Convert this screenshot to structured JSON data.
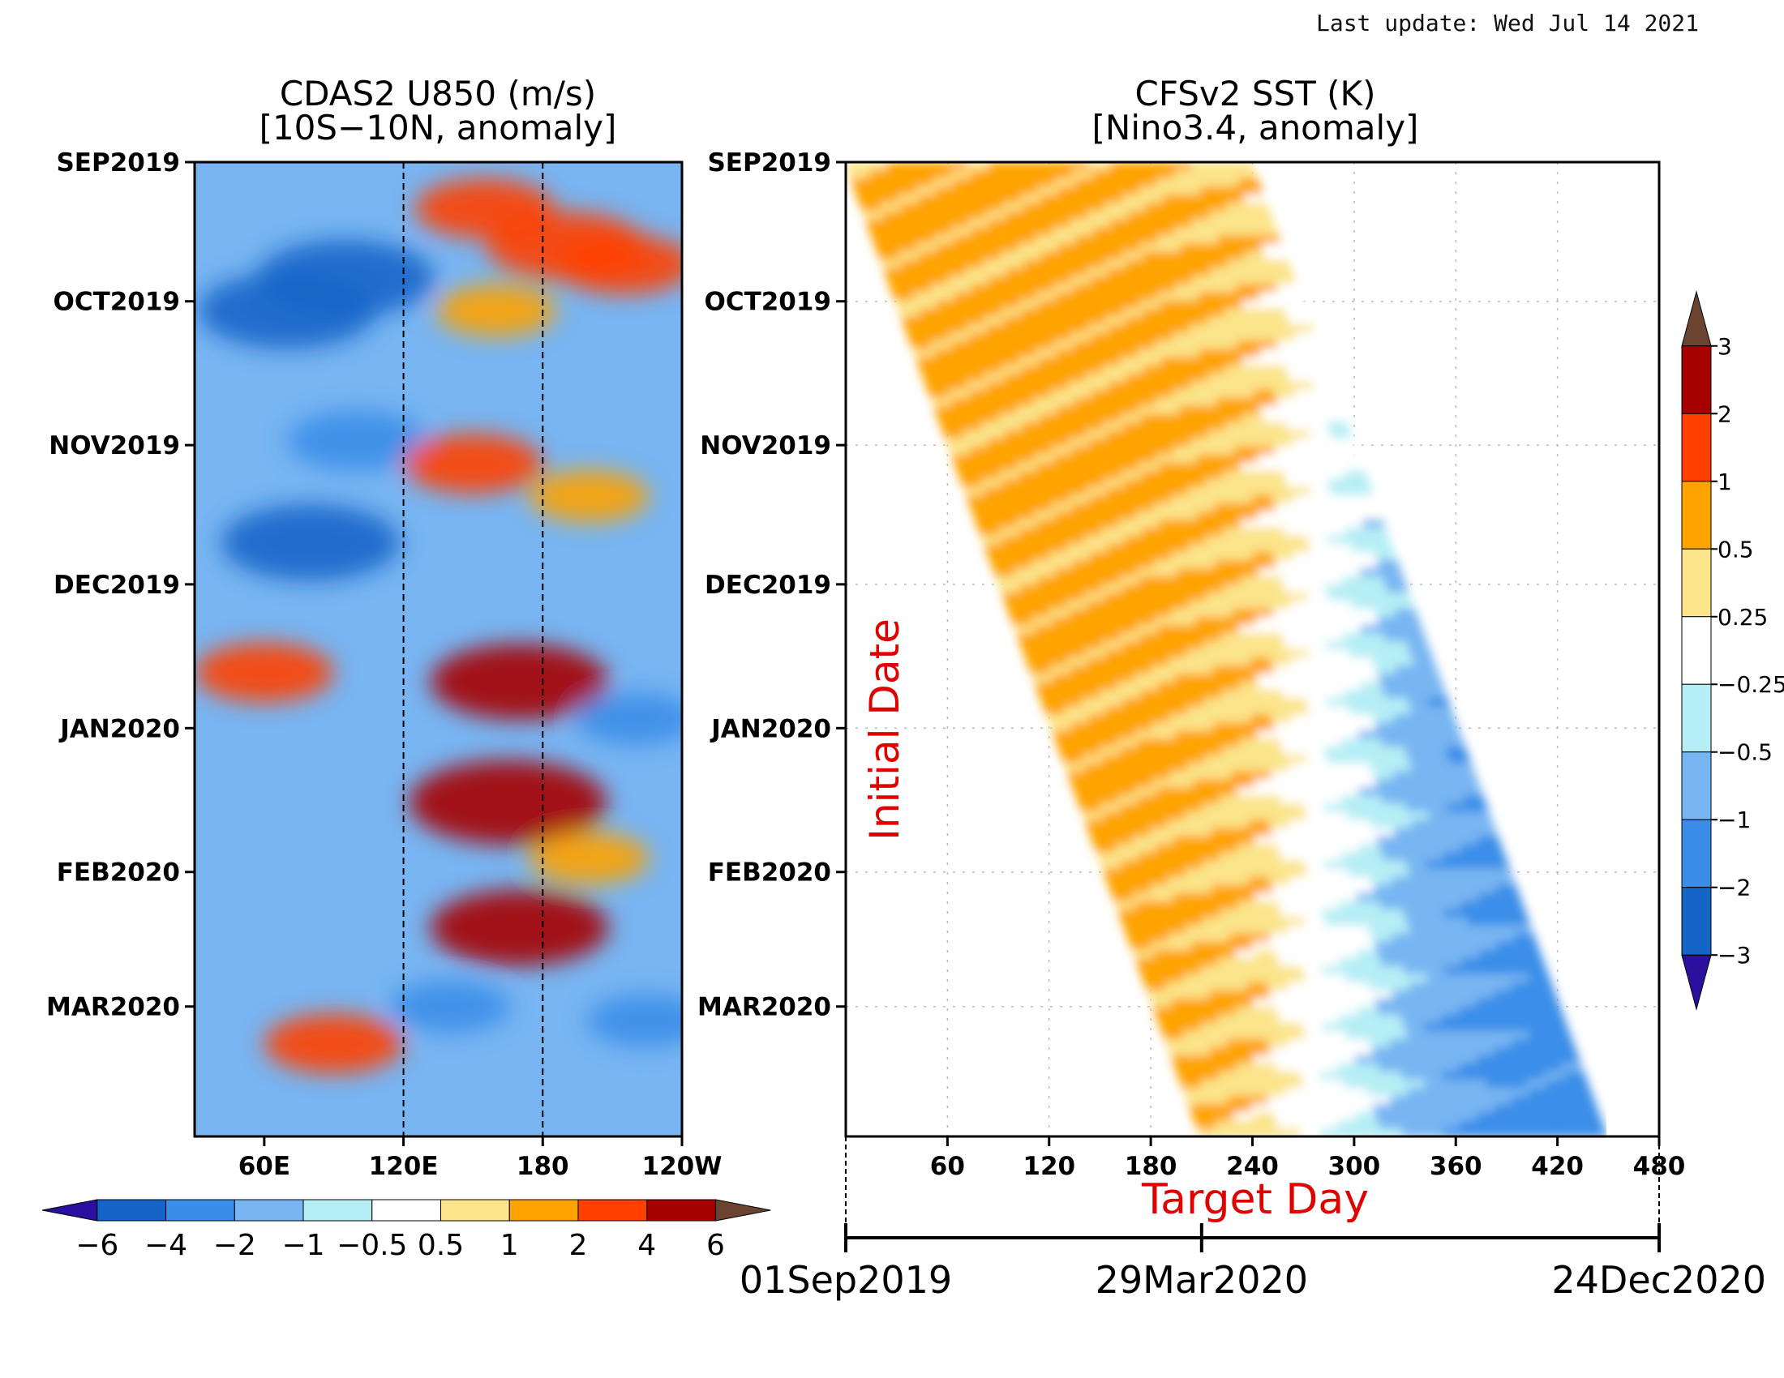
{
  "header": {
    "last_update": "Last update: Wed Jul 14 2021"
  },
  "chart_data": [
    {
      "type": "heatmap",
      "title": "CDAS2 U850 (m/s)",
      "subtitle": "[10S−10N, anomaly]",
      "x_tick_labels": [
        "60E",
        "120E",
        "180",
        "120W"
      ],
      "x_ticks_deg_east": [
        60,
        120,
        180,
        240
      ],
      "xlim_deg_east": [
        30,
        240
      ],
      "y_tick_labels": [
        "SEP2019",
        "OCT2019",
        "NOV2019",
        "DEC2019",
        "JAN2020",
        "FEB2020",
        "MAR2020"
      ],
      "y_tick_days": [
        0,
        30,
        61,
        91,
        122,
        153,
        182
      ],
      "ylim_days": [
        0,
        210
      ],
      "reference_lines_deg_east": [
        120,
        180
      ],
      "colorbar": {
        "labels": [
          "−6",
          "−4",
          "−2",
          "−1",
          "−0.5",
          "0.5",
          "1",
          "2",
          "4",
          "6"
        ],
        "colors": [
          "#2b0f9e",
          "#1565c9",
          "#3a8ee9",
          "#78b5f2",
          "#b6eef5",
          "#ffffff",
          "#fbe48a",
          "#ffa300",
          "#ff4000",
          "#a60000",
          "#6b4331"
        ]
      },
      "anomaly_field": [
        {
          "lon": 95,
          "day": 25,
          "value": -5
        },
        {
          "lon": 70,
          "day": 32,
          "value": -5
        },
        {
          "lon": 80,
          "day": 82,
          "value": -5
        },
        {
          "lon": 100,
          "day": 60,
          "value": -3
        },
        {
          "lon": 155,
          "day": 10,
          "value": 3
        },
        {
          "lon": 190,
          "day": 18,
          "value": 4
        },
        {
          "lon": 215,
          "day": 22,
          "value": 3
        },
        {
          "lon": 160,
          "day": 32,
          "value": 2
        },
        {
          "lon": 150,
          "day": 65,
          "value": 3
        },
        {
          "lon": 200,
          "day": 72,
          "value": 2
        },
        {
          "lon": 60,
          "day": 110,
          "value": 3
        },
        {
          "lon": 170,
          "day": 112,
          "value": 5
        },
        {
          "lon": 165,
          "day": 138,
          "value": 6
        },
        {
          "lon": 170,
          "day": 165,
          "value": 5
        },
        {
          "lon": 90,
          "day": 190,
          "value": 3
        },
        {
          "lon": 200,
          "day": 150,
          "value": 2
        },
        {
          "lon": 140,
          "day": 182,
          "value": -2
        },
        {
          "lon": 220,
          "day": 120,
          "value": -2
        },
        {
          "lon": 225,
          "day": 185,
          "value": -2
        }
      ]
    },
    {
      "type": "heatmap",
      "title": "CFSv2 SST (K)",
      "subtitle": "[Nino3.4, anomaly]",
      "xlabel": "Target Day",
      "ylabel": "Initial Date",
      "x_tick_labels": [
        "60",
        "120",
        "180",
        "240",
        "300",
        "360",
        "420",
        "480"
      ],
      "x_ticks": [
        60,
        120,
        180,
        240,
        300,
        360,
        420,
        480
      ],
      "xlim": [
        0,
        480
      ],
      "y_tick_labels": [
        "SEP2019",
        "OCT2019",
        "NOV2019",
        "DEC2019",
        "JAN2020",
        "FEB2020",
        "MAR2020"
      ],
      "y_tick_days": [
        0,
        30,
        61,
        91,
        122,
        153,
        182
      ],
      "ylim_days": [
        0,
        210
      ],
      "forecast_lead_days": 240,
      "grid": true,
      "date_axis": {
        "labels": [
          "01Sep2019",
          "29Mar2020",
          "24Dec2020"
        ],
        "ticks": [
          0,
          210,
          480
        ]
      },
      "colorbar": {
        "labels": [
          "3",
          "2",
          "1",
          "0.5",
          "0.25",
          "−0.25",
          "−0.5",
          "−1",
          "−2",
          "−3"
        ],
        "colors": [
          "#6b4331",
          "#a60000",
          "#ff4000",
          "#ffa300",
          "#fbe48a",
          "#ffffff",
          "#b6eef5",
          "#78b5f2",
          "#3a8ee9",
          "#1565c9",
          "#2b0f9e"
        ]
      },
      "anomaly_by_target_day": [
        {
          "target_day": 30,
          "value": 0.6
        },
        {
          "target_day": 120,
          "value": 0.6
        },
        {
          "target_day": 180,
          "value": 0.6
        },
        {
          "target_day": 240,
          "value": 0.4
        },
        {
          "target_day": 270,
          "value": 0.0
        },
        {
          "target_day": 300,
          "value": -0.3
        },
        {
          "target_day": 340,
          "value": -0.8
        },
        {
          "target_day": 400,
          "value": -1.2
        },
        {
          "target_day": 450,
          "value": -1.2
        }
      ]
    }
  ]
}
